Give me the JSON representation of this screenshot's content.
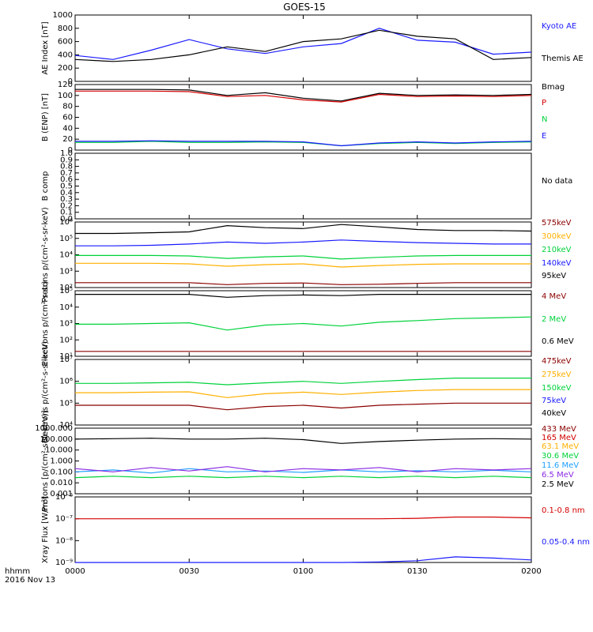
{
  "title": "GOES-15",
  "footer": {
    "time_label": "hhmm",
    "date_label": "2016 Nov 13"
  },
  "x_ticks": [
    "0000",
    "0030",
    "0100",
    "0130",
    "0200"
  ],
  "colors": {
    "axis": "#000000",
    "black": "#000000",
    "blue": "#1a1aff",
    "red": "#d40000",
    "green": "#00d23a",
    "orange": "#ffb000",
    "darkred": "#8b0000",
    "cyan": "#1ea0ff",
    "purple": "#8a2be2",
    "lime": "#7cfc00"
  },
  "chart_data": [
    {
      "type": "line",
      "ylabel": "AE Index [nT]",
      "yscale": "linear",
      "ylim": [
        0,
        1000
      ],
      "y_ticks": [
        "0",
        "200",
        "400",
        "600",
        "800",
        "1000"
      ],
      "x_minutes": [
        0,
        10,
        20,
        30,
        40,
        50,
        60,
        70,
        80,
        90,
        100,
        110,
        120
      ],
      "series": [
        {
          "name": "Kyoto AE",
          "color": "#1a1aff",
          "values": [
            390,
            330,
            470,
            630,
            490,
            420,
            520,
            570,
            800,
            620,
            590,
            410,
            440
          ]
        },
        {
          "name": "Themis AE",
          "color": "#000000",
          "values": [
            330,
            300,
            330,
            400,
            520,
            450,
            600,
            640,
            770,
            680,
            640,
            330,
            360
          ]
        }
      ]
    },
    {
      "type": "line",
      "ylabel": "B (ENP) [nT]",
      "yscale": "linear",
      "ylim": [
        0,
        120
      ],
      "y_ticks": [
        "0",
        "20",
        "40",
        "60",
        "80",
        "100",
        "120"
      ],
      "x_minutes": [
        0,
        10,
        20,
        30,
        40,
        50,
        60,
        70,
        80,
        90,
        100,
        110,
        120
      ],
      "series": [
        {
          "name": "Bmag",
          "color": "#000000",
          "values": [
            111,
            111,
            111,
            110,
            100,
            105,
            95,
            90,
            104,
            100,
            101,
            100,
            102
          ]
        },
        {
          "name": "P",
          "color": "#d40000",
          "values": [
            108,
            108,
            108,
            107,
            98,
            100,
            92,
            88,
            102,
            98,
            99,
            98,
            100
          ]
        },
        {
          "name": "N",
          "color": "#00d23a",
          "values": [
            14,
            14,
            16,
            14,
            14,
            15,
            14,
            8,
            12,
            14,
            12,
            14,
            15
          ]
        },
        {
          "name": "E",
          "color": "#1a1aff",
          "values": [
            16,
            16,
            17,
            16,
            16,
            16,
            15,
            8,
            13,
            15,
            13,
            15,
            16
          ]
        }
      ]
    },
    {
      "type": "line",
      "ylabel": "B comp",
      "yscale": "linear",
      "ylim": [
        0,
        1
      ],
      "y_ticks": [
        "0.0",
        "0.1",
        "0.2",
        "0.3",
        "0.4",
        "0.5",
        "0.6",
        "0.7",
        "0.8",
        "0.9",
        "1.0"
      ],
      "no_data_label": "No data",
      "series": []
    },
    {
      "type": "line",
      "ylabel": "Protons p/(cm²-s-sr-keV)",
      "yscale": "log",
      "ylim": [
        100,
        1000000
      ],
      "y_ticks": [
        "10²",
        "10³",
        "10⁴",
        "10⁵",
        "10⁶"
      ],
      "x_minutes": [
        0,
        10,
        20,
        30,
        40,
        50,
        60,
        70,
        80,
        90,
        100,
        110,
        120
      ],
      "series": [
        {
          "name": "575keV",
          "color": "#8b0000",
          "values": [
            200,
            200,
            200,
            200,
            150,
            180,
            190,
            150,
            160,
            180,
            200,
            200,
            200
          ]
        },
        {
          "name": "300keV",
          "color": "#ffb000",
          "values": [
            3000,
            3000,
            3000,
            2800,
            2000,
            2500,
            2800,
            1800,
            2200,
            2600,
            2800,
            2800,
            2800
          ]
        },
        {
          "name": "210keV",
          "color": "#00d23a",
          "values": [
            9000,
            9000,
            9000,
            8500,
            6000,
            7500,
            8500,
            5500,
            7000,
            8500,
            9000,
            9000,
            9000
          ]
        },
        {
          "name": "140keV",
          "color": "#1a1aff",
          "values": [
            35000,
            35000,
            38000,
            45000,
            60000,
            50000,
            60000,
            80000,
            65000,
            55000,
            50000,
            45000,
            45000
          ]
        },
        {
          "name": "95keV",
          "color": "#000000",
          "values": [
            200000,
            200000,
            220000,
            250000,
            600000,
            450000,
            400000,
            700000,
            500000,
            350000,
            300000,
            300000,
            280000
          ]
        }
      ]
    },
    {
      "type": "line",
      "ylabel": "Electrons p/(cm²-s-sr)",
      "yscale": "log",
      "ylim": [
        10,
        100000
      ],
      "y_ticks": [
        "10¹",
        "10²",
        "10³",
        "10⁴",
        "10⁵"
      ],
      "x_minutes": [
        0,
        10,
        20,
        30,
        40,
        50,
        60,
        70,
        80,
        90,
        100,
        110,
        120
      ],
      "series": [
        {
          "name": "4 MeV",
          "color": "#8b0000",
          "values": [
            20,
            20,
            20,
            20,
            20,
            20,
            20,
            20,
            20,
            20,
            20,
            20,
            20
          ]
        },
        {
          "name": "2 MeV",
          "color": "#00d23a",
          "values": [
            900,
            900,
            1000,
            1100,
            400,
            800,
            1000,
            700,
            1200,
            1500,
            2000,
            2200,
            2500
          ]
        },
        {
          "name": "0.6 MeV",
          "color": "#000000",
          "values": [
            60000,
            60000,
            60000,
            60000,
            40000,
            50000,
            55000,
            50000,
            60000,
            60000,
            60000,
            60000,
            60000
          ]
        }
      ]
    },
    {
      "type": "line",
      "ylabel": "Electrons p/(cm²-s-sr-keV)",
      "yscale": "log",
      "ylim": [
        10000,
        10000000
      ],
      "y_ticks": [
        "10⁴",
        "10⁵",
        "10⁶",
        "10⁷"
      ],
      "x_minutes": [
        0,
        10,
        20,
        30,
        40,
        50,
        60,
        70,
        80,
        90,
        100,
        110,
        120
      ],
      "series": [
        {
          "name": "475keV",
          "color": "#8b0000",
          "values": [
            80000,
            80000,
            80000,
            80000,
            50000,
            70000,
            80000,
            60000,
            80000,
            90000,
            100000,
            100000,
            100000
          ]
        },
        {
          "name": "275keV",
          "color": "#ffb000",
          "values": [
            300000,
            300000,
            320000,
            330000,
            180000,
            270000,
            320000,
            250000,
            320000,
            380000,
            420000,
            420000,
            420000
          ]
        },
        {
          "name": "150keV",
          "color": "#00d23a",
          "values": [
            800000,
            800000,
            850000,
            900000,
            700000,
            850000,
            1000000,
            800000,
            1000000,
            1200000,
            1400000,
            1400000,
            1400000
          ]
        },
        {
          "name": "75keV",
          "color": "#1a1aff",
          "values": []
        },
        {
          "name": "40keV",
          "color": "#000000",
          "values": []
        }
      ]
    },
    {
      "type": "line",
      "ylabel": "Protons [p/(cm²-s-sr-keV)]",
      "yscale": "log",
      "ylim": [
        0.001,
        1000
      ],
      "y_ticks": [
        "0.001",
        "0.010",
        "0.100",
        "1.000",
        "10.000",
        "100.000",
        "1000.000"
      ],
      "x_minutes": [
        0,
        10,
        20,
        30,
        40,
        50,
        60,
        70,
        80,
        90,
        100,
        110,
        120
      ],
      "series": [
        {
          "name": "433 MeV",
          "color": "#8b0000",
          "values": []
        },
        {
          "name": "165 MeV",
          "color": "#d40000",
          "values": []
        },
        {
          "name": "63.1 MeV",
          "color": "#ffb000",
          "values": []
        },
        {
          "name": "30.6 MeV",
          "color": "#00d23a",
          "values": [
            0.03,
            0.04,
            0.03,
            0.04,
            0.03,
            0.04,
            0.03,
            0.04,
            0.03,
            0.04,
            0.03,
            0.04,
            0.03
          ]
        },
        {
          "name": "11.6 MeV",
          "color": "#1ea0ff",
          "values": [
            0.1,
            0.15,
            0.08,
            0.2,
            0.1,
            0.12,
            0.09,
            0.15,
            0.1,
            0.13,
            0.1,
            0.14,
            0.1
          ]
        },
        {
          "name": "6.5 MeV",
          "color": "#8a2be2",
          "values": [
            0.2,
            0.1,
            0.25,
            0.12,
            0.3,
            0.1,
            0.2,
            0.15,
            0.25,
            0.1,
            0.2,
            0.15,
            0.2
          ]
        },
        {
          "name": "2.5 MeV",
          "color": "#000000",
          "values": [
            100,
            110,
            120,
            100,
            100,
            120,
            90,
            40,
            60,
            80,
            100,
            110,
            100
          ]
        }
      ]
    },
    {
      "type": "line",
      "ylabel": "Xray Flux [W/m²]",
      "yscale": "log",
      "ylim": [
        1e-09,
        1e-06
      ],
      "y_ticks": [
        "10⁻⁹",
        "10⁻⁸",
        "10⁻⁷",
        "10⁻⁶"
      ],
      "x_minutes": [
        0,
        10,
        20,
        30,
        40,
        50,
        60,
        70,
        80,
        90,
        100,
        110,
        120
      ],
      "series": [
        {
          "name": "0.1-0.8 nm",
          "color": "#d40000",
          "values": [
            1e-07,
            1e-07,
            1e-07,
            1e-07,
            1e-07,
            1e-07,
            1e-07,
            1e-07,
            1e-07,
            1.05e-07,
            1.2e-07,
            1.2e-07,
            1.1e-07
          ]
        },
        {
          "name": "0.05-0.4 nm",
          "color": "#1a1aff",
          "values": [
            1e-09,
            1e-09,
            1e-09,
            1e-09,
            1e-09,
            1e-09,
            1e-09,
            1e-09,
            1.05e-09,
            1.2e-09,
            1.8e-09,
            1.6e-09,
            1.3e-09
          ]
        }
      ]
    }
  ]
}
